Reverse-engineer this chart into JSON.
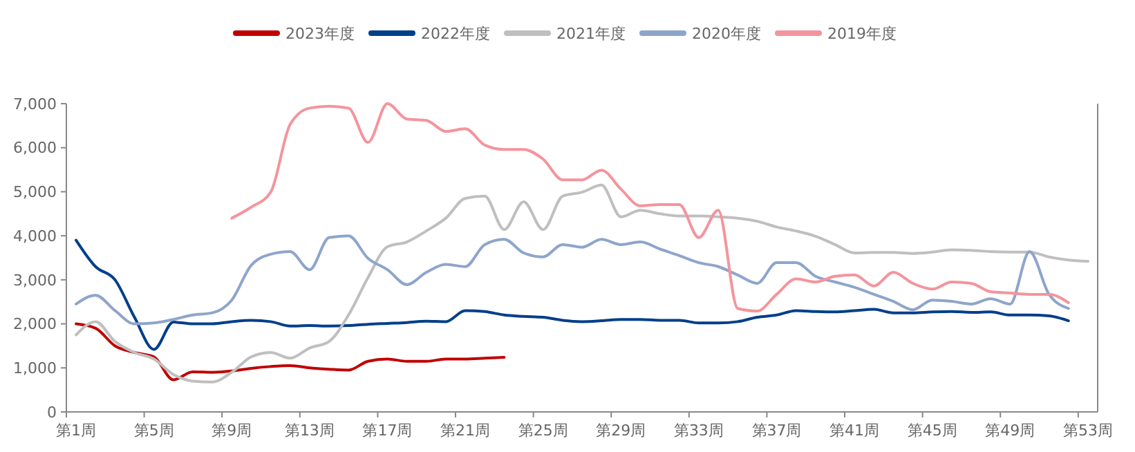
{
  "chart_data": {
    "type": "line",
    "legend": "top",
    "marker": "none",
    "line_style": "solid",
    "grid": false,
    "categories": [
      "第1周",
      null,
      null,
      null,
      "第5周",
      null,
      null,
      null,
      "第9周",
      null,
      null,
      null,
      "第13周",
      null,
      null,
      null,
      "第17周",
      null,
      null,
      null,
      "第21周",
      null,
      null,
      null,
      "第25周",
      null,
      null,
      null,
      "第29周",
      null,
      null,
      null,
      "第33周",
      null,
      null,
      null,
      "第37周",
      null,
      null,
      null,
      "第41周",
      null,
      null,
      null,
      "第45周",
      null,
      null,
      null,
      "第49周",
      null,
      null,
      null,
      "第53周"
    ],
    "ylim": [
      0,
      7000
    ],
    "yticks": [
      0,
      {
        "value": 1000,
        "label": "1,000"
      },
      {
        "value": 2000,
        "label": "2,000"
      },
      {
        "value": 3000,
        "label": "3,000"
      },
      {
        "value": 4000,
        "label": "4,000"
      },
      {
        "value": 5000,
        "label": "5,000"
      },
      {
        "value": 6000,
        "label": "6,000"
      },
      {
        "value": 7000,
        "label": "7,000"
      }
    ],
    "series": [
      {
        "name": "2023年度",
        "color": "#c00000",
        "values": [
          2000,
          1900,
          1500,
          1350,
          1250,
          730,
          910,
          900,
          930,
          990,
          1030,
          1050,
          1000,
          970,
          950,
          1150,
          1200,
          1150,
          1150,
          1200,
          1200,
          1220,
          1240,
          null,
          null,
          null,
          null,
          null,
          null,
          null,
          null,
          null,
          null,
          null,
          null,
          null,
          null,
          null,
          null,
          null,
          null,
          null,
          null,
          null,
          null,
          null,
          null,
          null,
          null,
          null,
          null,
          null,
          null
        ]
      },
      {
        "name": "2022年度",
        "color": "#003f8a",
        "values": [
          3900,
          3300,
          3000,
          2150,
          1420,
          2040,
          2000,
          2000,
          2050,
          2080,
          2050,
          1950,
          1960,
          1950,
          1960,
          1990,
          2010,
          2030,
          2060,
          2050,
          2300,
          2280,
          2200,
          2170,
          2150,
          2080,
          2050,
          2070,
          2100,
          2100,
          2080,
          2080,
          2020,
          2020,
          2050,
          2150,
          2200,
          2300,
          2280,
          2270,
          2300,
          2330,
          2250,
          2250,
          2270,
          2280,
          2260,
          2270,
          2200,
          2200,
          2180,
          2070,
          null
        ]
      },
      {
        "name": "2021年度",
        "color": "#bfbfbf",
        "values": [
          1750,
          2050,
          1600,
          1350,
          1200,
          850,
          700,
          680,
          900,
          1250,
          1350,
          1220,
          1450,
          1600,
          2200,
          3050,
          3750,
          3860,
          4110,
          4400,
          4850,
          4900,
          4140,
          4770,
          4140,
          4900,
          4990,
          5150,
          4430,
          4580,
          4500,
          4450,
          4450,
          4430,
          4400,
          4330,
          4200,
          4110,
          3990,
          3800,
          3610,
          3620,
          3620,
          3600,
          3630,
          3680,
          3670,
          3640,
          3630,
          3630,
          3520,
          3450,
          3420
        ]
      },
      {
        "name": "2020年度",
        "color": "#8ea5cb",
        "values": [
          2450,
          2650,
          2300,
          2000,
          2020,
          2100,
          2200,
          2250,
          2540,
          3330,
          3580,
          3640,
          3230,
          3960,
          4000,
          3490,
          3230,
          2890,
          3170,
          3350,
          3300,
          3800,
          3920,
          3610,
          3520,
          3800,
          3740,
          3920,
          3800,
          3860,
          3700,
          3550,
          3390,
          3300,
          3110,
          2920,
          3390,
          3390,
          3080,
          2950,
          2830,
          2670,
          2510,
          2320,
          2540,
          2510,
          2450,
          2570,
          2450,
          3640,
          2670,
          2350,
          null
        ]
      },
      {
        "name": "2019年度",
        "color": "#f4949c",
        "values": [
          null,
          null,
          null,
          null,
          null,
          null,
          null,
          null,
          4400,
          4650,
          4990,
          6530,
          6900,
          6940,
          6900,
          6120,
          7000,
          6650,
          6620,
          6370,
          6430,
          6060,
          5960,
          5960,
          5740,
          5270,
          5270,
          5490,
          5060,
          4680,
          4710,
          4710,
          3960,
          4580,
          2350,
          2290,
          2670,
          3020,
          2950,
          3080,
          3110,
          2860,
          3170,
          2920,
          2790,
          2950,
          2920,
          2730,
          2700,
          2670,
          2670,
          2480,
          null
        ]
      }
    ]
  }
}
